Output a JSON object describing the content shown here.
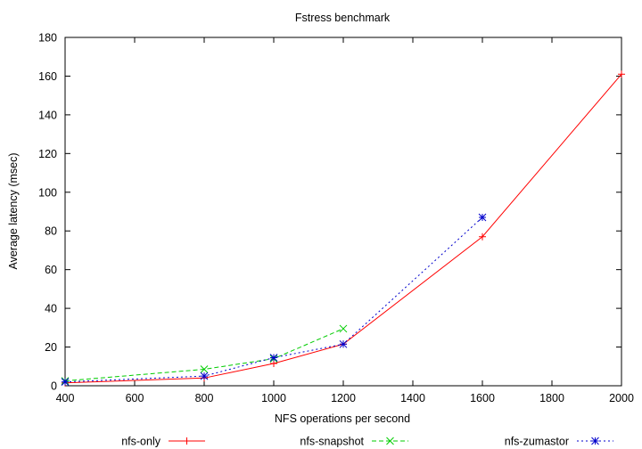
{
  "chart_data": {
    "type": "line",
    "title": "Fstress benchmark",
    "xlabel": "NFS operations per second",
    "ylabel": "Average latency (msec)",
    "xlim": [
      400,
      2000
    ],
    "ylim": [
      0,
      180
    ],
    "xticks": [
      "400",
      "600",
      "800",
      "1000",
      "1200",
      "1400",
      "1600",
      "1800",
      "2000"
    ],
    "yticks": [
      "0",
      "20",
      "40",
      "60",
      "80",
      "100",
      "120",
      "140",
      "160",
      "180"
    ],
    "grid": false,
    "legend_position": "bottom",
    "series": [
      {
        "name": "nfs-only",
        "color": "#ff0000",
        "dash": "solid",
        "marker": "plus",
        "x": [
          400,
          800,
          1000,
          1200,
          1600,
          2000
        ],
        "values": [
          1.5,
          4,
          11.5,
          21.5,
          77,
          161
        ]
      },
      {
        "name": "nfs-snapshot",
        "color": "#00cc00",
        "dash": "dashed",
        "marker": "cross",
        "x": [
          400,
          800,
          1000,
          1200
        ],
        "values": [
          2.5,
          8.5,
          14,
          29.5
        ]
      },
      {
        "name": "nfs-zumastor",
        "color": "#0000cc",
        "dash": "dotted",
        "marker": "star",
        "x": [
          400,
          800,
          1000,
          1200,
          1600
        ],
        "values": [
          2,
          5,
          14.5,
          21.5,
          87
        ]
      }
    ]
  }
}
